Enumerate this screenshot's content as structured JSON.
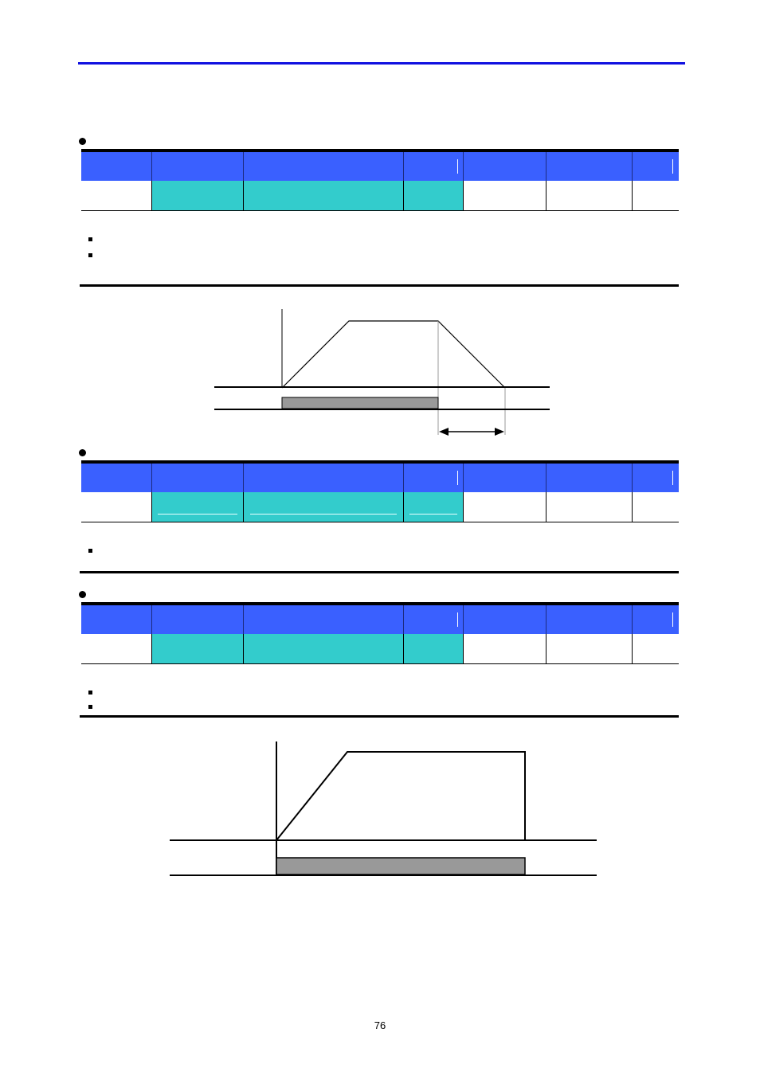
{
  "page": {
    "number": "76"
  },
  "colors": {
    "header_rule": "#1010e0",
    "table_header": "#3a60ff",
    "highlight_cell": "#33cccc",
    "bar_fill": "#999999"
  },
  "icons": [
    "bullet-dot",
    "square-bullet",
    "double-arrow"
  ]
}
